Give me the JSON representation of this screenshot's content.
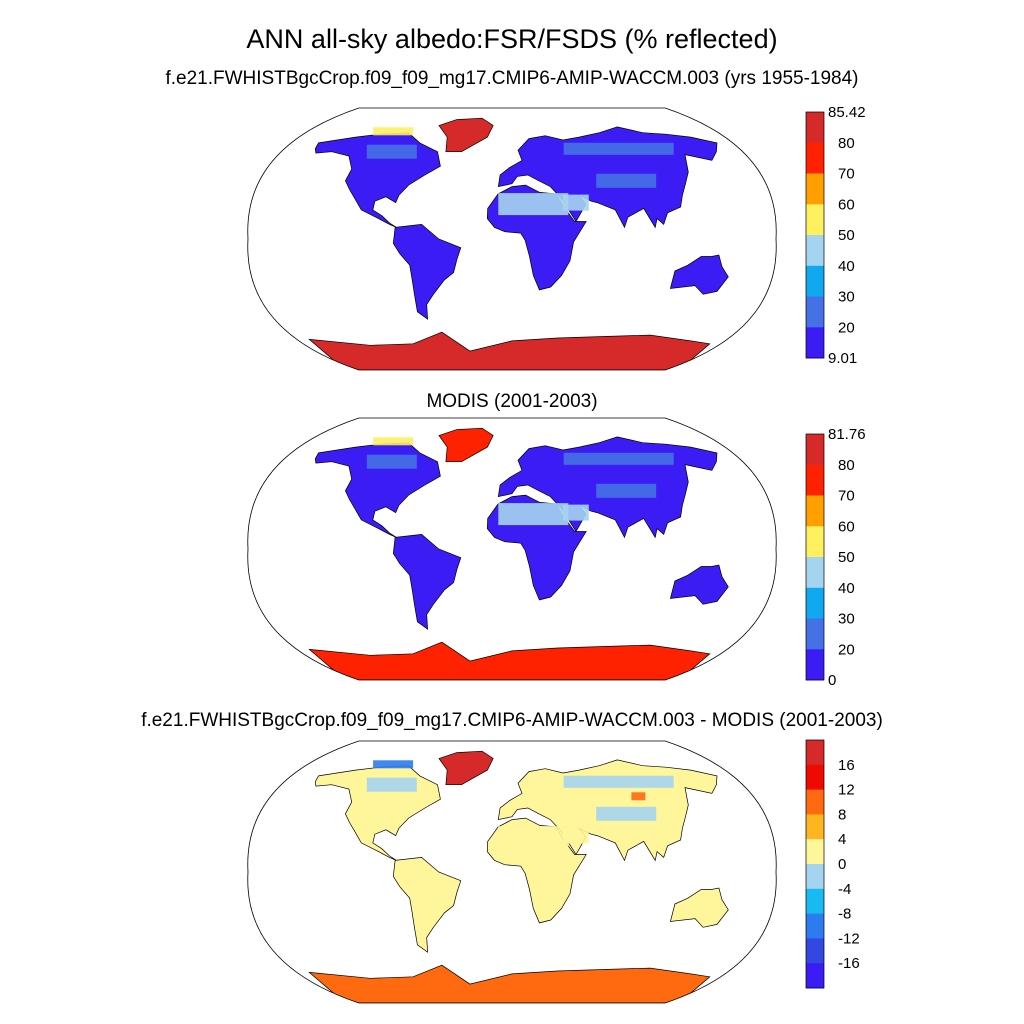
{
  "title": "ANN all-sky albedo:FSR/FSDS (% reflected)",
  "panels": [
    {
      "id": "model",
      "title": "f.e21.FWHISTBgcCrop.f09_f09_mg17.CMIP6-AMIP-WACCM.003 (yrs 1955-1984)",
      "colorbar": {
        "labels": [
          "85.42",
          "80",
          "70",
          "60",
          "50",
          "40",
          "30",
          "20",
          "9.01"
        ],
        "colors": [
          "#d62a2a",
          "#ff2200",
          "#ff9f00",
          "#fff060",
          "#a5d4f0",
          "#10a8f0",
          "#4472e6",
          "#3c1cf5"
        ]
      }
    },
    {
      "id": "obs",
      "title": "MODIS (2001-2003)",
      "colorbar": {
        "labels": [
          "81.76",
          "80",
          "70",
          "60",
          "50",
          "40",
          "30",
          "20",
          "0"
        ],
        "colors": [
          "#d62a2a",
          "#ff2200",
          "#ff9f00",
          "#fff060",
          "#a5d4f0",
          "#10a8f0",
          "#4472e6",
          "#3c1cf5"
        ]
      }
    },
    {
      "id": "diff",
      "title": "f.e21.FWHISTBgcCrop.f09_f09_mg17.CMIP6-AMIP-WACCM.003 - MODIS (2001-2003)",
      "colorbar": {
        "labels": [
          "16",
          "12",
          "8",
          "4",
          "0",
          "-4",
          "-8",
          "-12",
          "-16"
        ],
        "colors": [
          "#d62a2a",
          "#ee0a00",
          "#ff6a10",
          "#ffb520",
          "#fff59a",
          "#a5d4f0",
          "#18baf2",
          "#2c7cf0",
          "#3248e0",
          "#3c1cf5"
        ]
      }
    }
  ]
}
